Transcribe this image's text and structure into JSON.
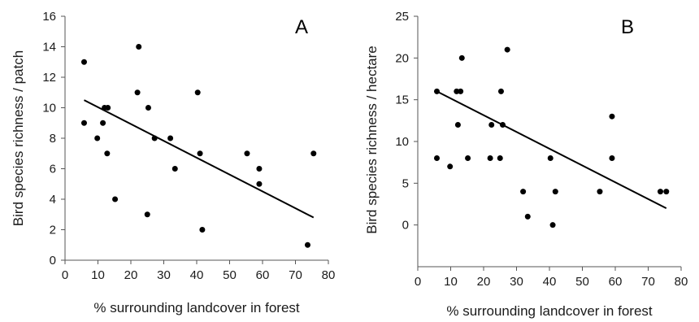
{
  "chart_data": [
    {
      "type": "scatter",
      "panel_label": "A",
      "xlabel": "% surrounding landcover in forest",
      "ylabel": "Bird species richness / patch",
      "xlim": [
        0,
        80
      ],
      "ylim": [
        0,
        16
      ],
      "x_ticks": [
        0,
        10,
        20,
        30,
        40,
        50,
        60,
        70,
        80
      ],
      "y_ticks": [
        0,
        2,
        4,
        6,
        8,
        10,
        12,
        14,
        16
      ],
      "grid": false,
      "points": [
        {
          "x": 5.8,
          "y": 13
        },
        {
          "x": 5.8,
          "y": 9
        },
        {
          "x": 9.8,
          "y": 8
        },
        {
          "x": 11.5,
          "y": 9
        },
        {
          "x": 12.0,
          "y": 10
        },
        {
          "x": 13.0,
          "y": 10
        },
        {
          "x": 12.8,
          "y": 7
        },
        {
          "x": 15.2,
          "y": 4
        },
        {
          "x": 22.0,
          "y": 11
        },
        {
          "x": 22.4,
          "y": 14
        },
        {
          "x": 25.3,
          "y": 10
        },
        {
          "x": 25.0,
          "y": 3
        },
        {
          "x": 27.2,
          "y": 8
        },
        {
          "x": 32.0,
          "y": 8
        },
        {
          "x": 33.4,
          "y": 6
        },
        {
          "x": 40.3,
          "y": 11
        },
        {
          "x": 41.0,
          "y": 7
        },
        {
          "x": 41.7,
          "y": 2
        },
        {
          "x": 55.3,
          "y": 7
        },
        {
          "x": 59.0,
          "y": 6
        },
        {
          "x": 59.0,
          "y": 5
        },
        {
          "x": 73.7,
          "y": 1
        },
        {
          "x": 75.5,
          "y": 7
        }
      ],
      "trendline": {
        "x1": 5.8,
        "y1": 10.5,
        "x2": 75.5,
        "y2": 2.8
      }
    },
    {
      "type": "scatter",
      "panel_label": "B",
      "xlabel": "% surrounding landcover in forest",
      "ylabel": "Bird species richness / hectare",
      "xlim": [
        0,
        80
      ],
      "ylim": [
        -5,
        25
      ],
      "x_ticks": [
        0,
        10,
        20,
        30,
        40,
        50,
        60,
        70,
        80
      ],
      "y_ticks": [
        0,
        5,
        10,
        15,
        20,
        25
      ],
      "grid": false,
      "points": [
        {
          "x": 5.8,
          "y": 16
        },
        {
          "x": 5.8,
          "y": 8
        },
        {
          "x": 9.8,
          "y": 7
        },
        {
          "x": 11.8,
          "y": 16
        },
        {
          "x": 12.2,
          "y": 12
        },
        {
          "x": 13.0,
          "y": 16
        },
        {
          "x": 13.4,
          "y": 20
        },
        {
          "x": 15.2,
          "y": 8
        },
        {
          "x": 22.0,
          "y": 8
        },
        {
          "x": 22.4,
          "y": 12
        },
        {
          "x": 25.0,
          "y": 8
        },
        {
          "x": 25.3,
          "y": 16
        },
        {
          "x": 25.8,
          "y": 12
        },
        {
          "x": 27.2,
          "y": 21
        },
        {
          "x": 32.0,
          "y": 4
        },
        {
          "x": 33.4,
          "y": 1
        },
        {
          "x": 40.3,
          "y": 8
        },
        {
          "x": 41.0,
          "y": 0
        },
        {
          "x": 41.8,
          "y": 4
        },
        {
          "x": 55.3,
          "y": 4
        },
        {
          "x": 59.0,
          "y": 13
        },
        {
          "x": 59.0,
          "y": 8
        },
        {
          "x": 73.7,
          "y": 4
        },
        {
          "x": 75.5,
          "y": 4
        }
      ],
      "trendline": {
        "x1": 5.8,
        "y1": 16.0,
        "x2": 75.5,
        "y2": 2.0
      }
    }
  ]
}
